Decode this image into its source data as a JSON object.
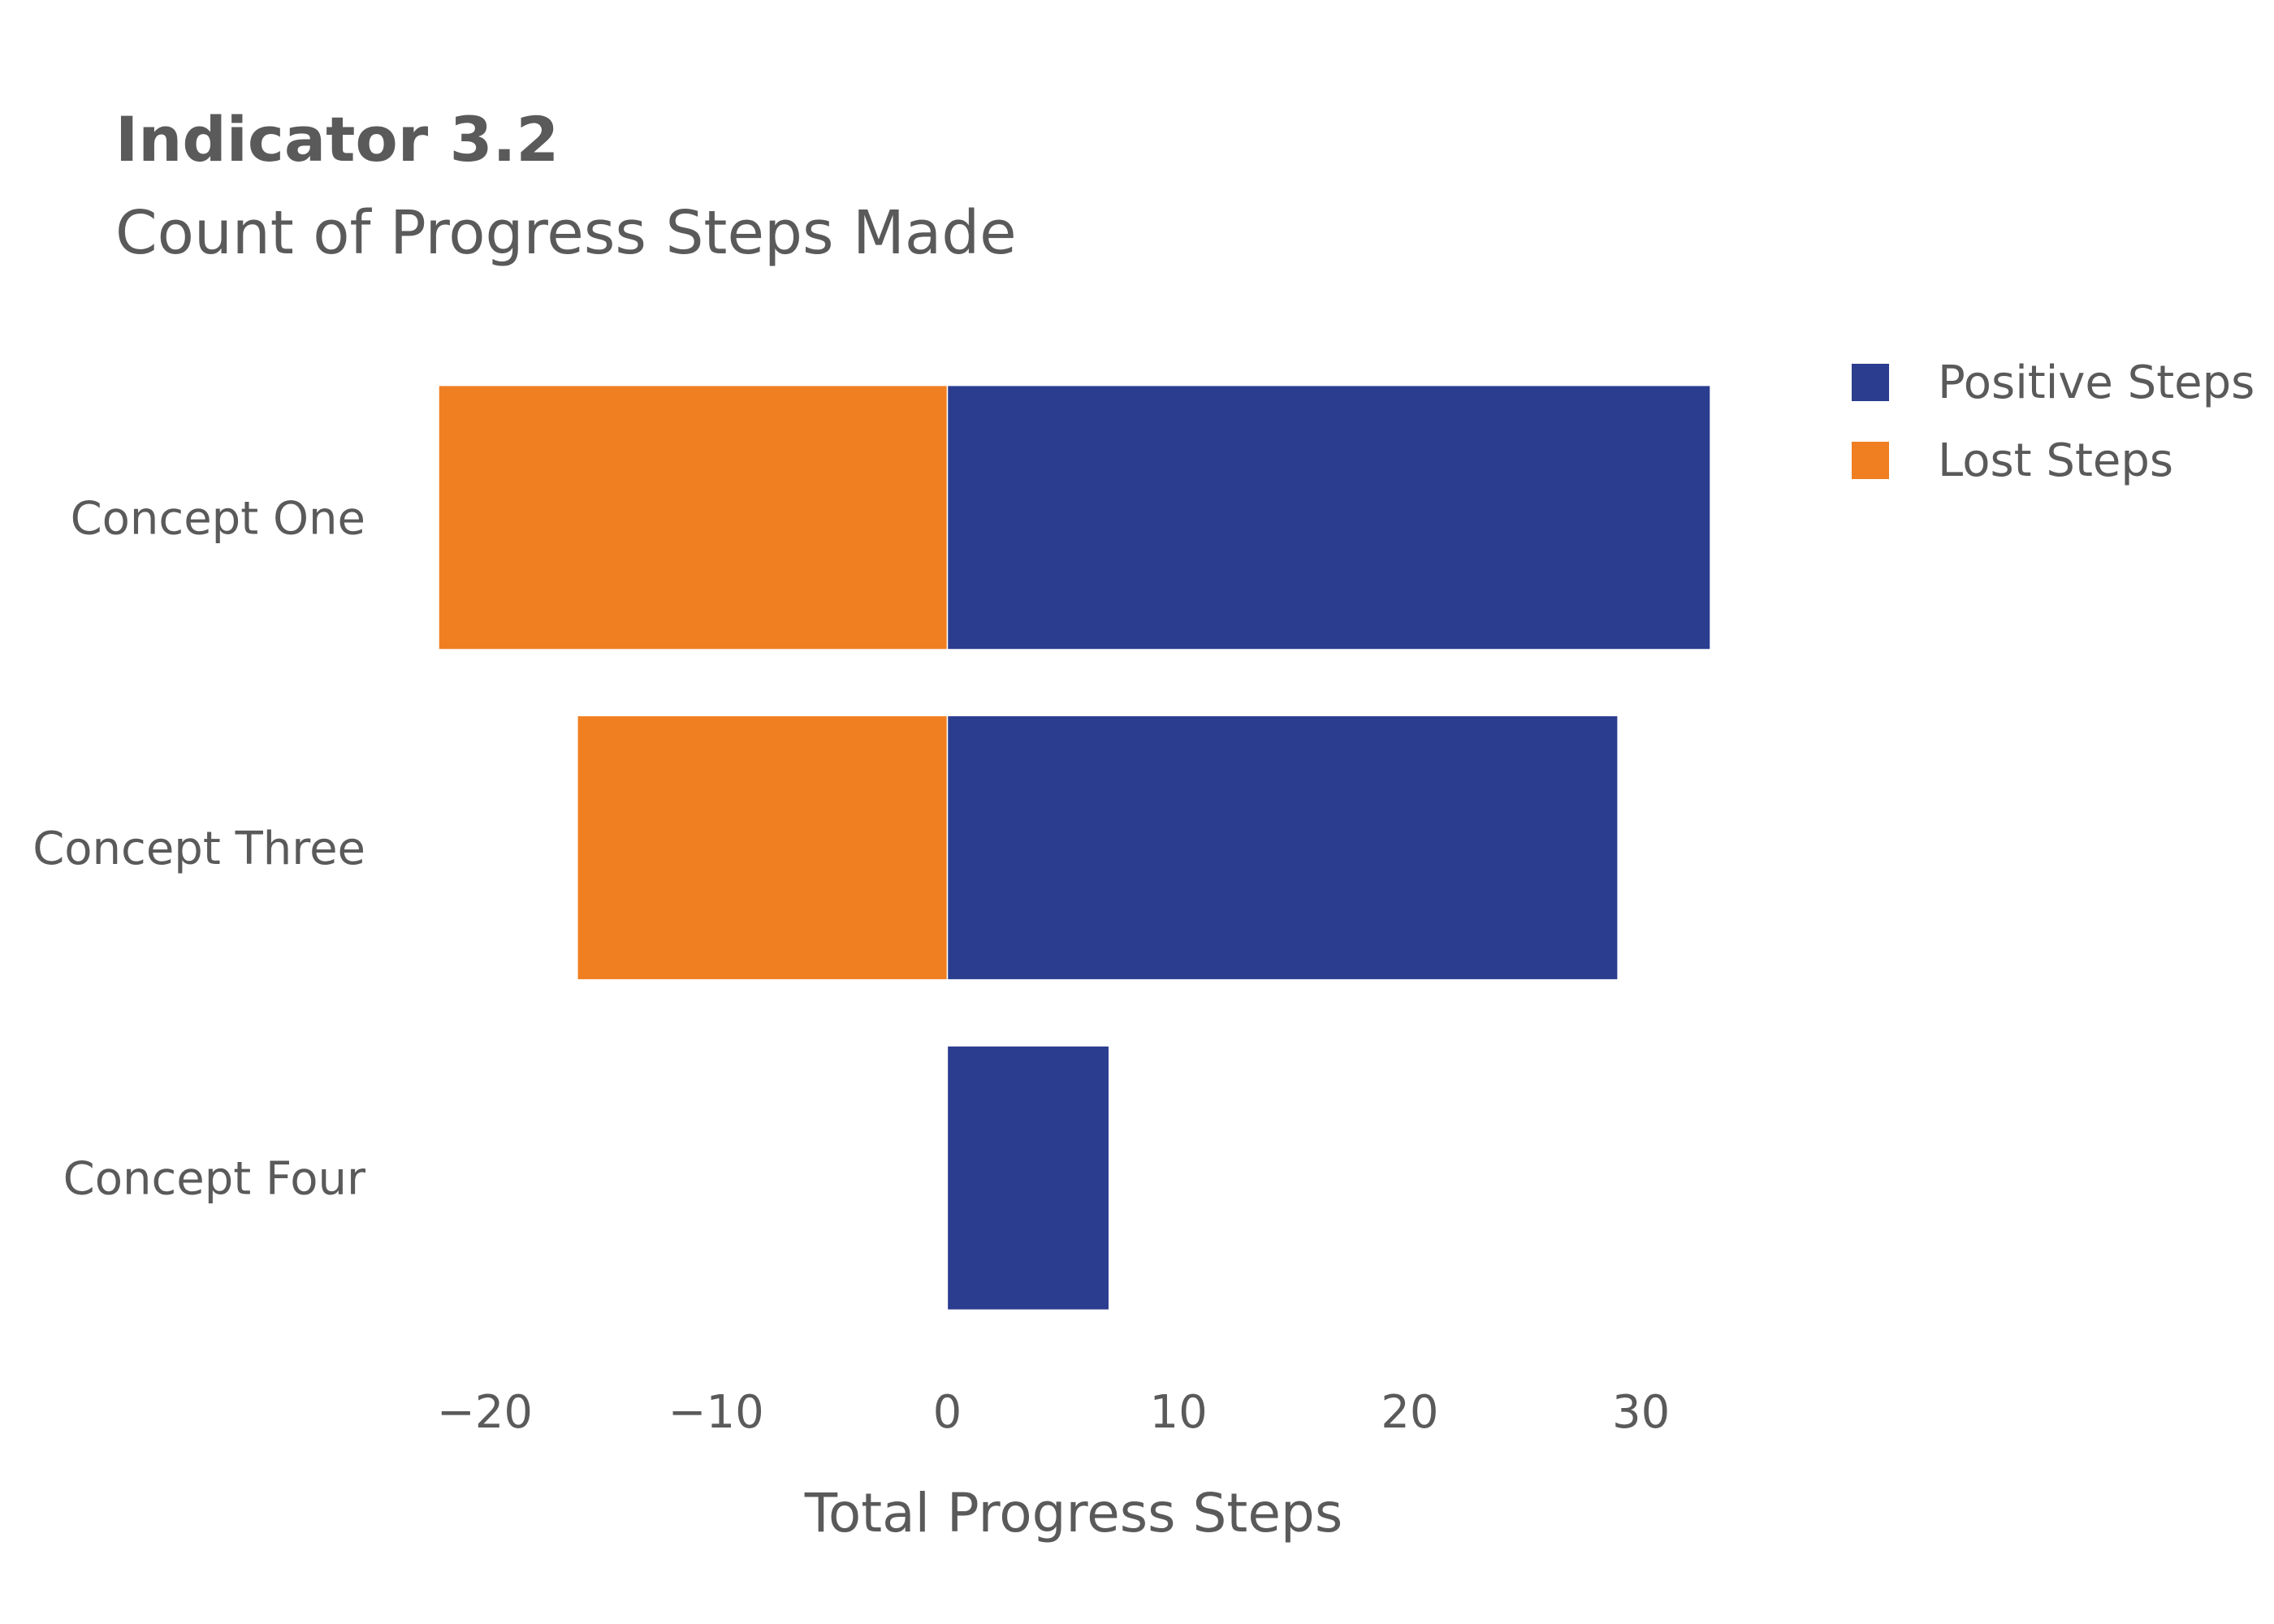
{
  "chart_data": {
    "type": "bar",
    "orientation": "horizontal",
    "stacked": "diverging",
    "title": "Indicator 3.2",
    "subtitle": "Count of Progress Steps Made",
    "xlabel": "Total Progress Steps",
    "ylabel": "",
    "xlim": [
      -22,
      33
    ],
    "xticks": [
      -20,
      -10,
      0,
      10,
      20,
      30
    ],
    "xtick_labels": [
      "−20",
      "−10",
      "0",
      "10",
      "20",
      "30"
    ],
    "categories": [
      "Concept One",
      "Concept Three",
      "Concept Four"
    ],
    "series": [
      {
        "name": "Positive Steps",
        "color": "#2b3d8f",
        "values": [
          33,
          29,
          7
        ]
      },
      {
        "name": "Lost Steps",
        "color": "#f07f22",
        "values": [
          -22,
          -16,
          0
        ]
      }
    ],
    "grid": false,
    "legend": "top-right"
  }
}
